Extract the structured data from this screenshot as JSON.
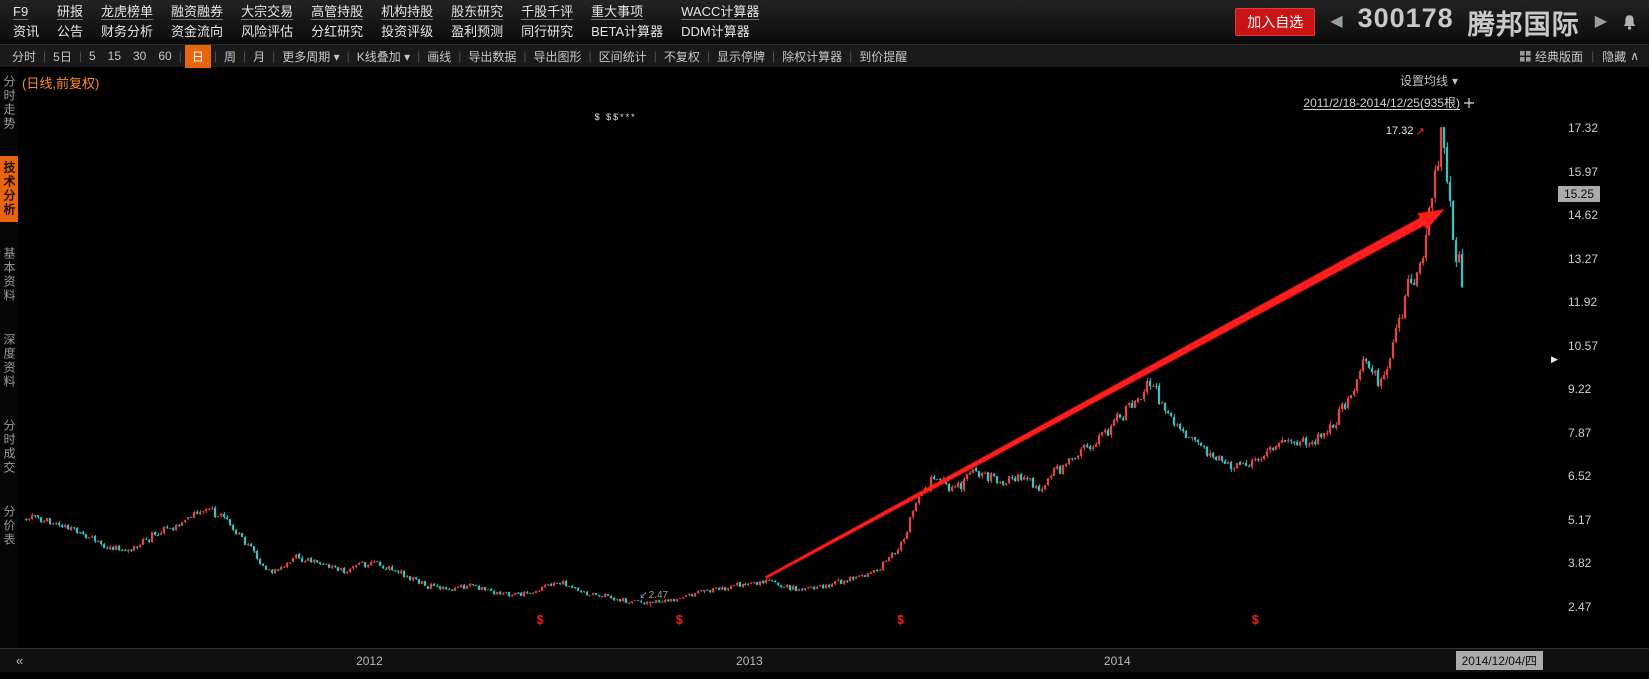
{
  "icons": {
    "caret_down": "▾",
    "chevron_up": "∧"
  },
  "header": {
    "menu_columns": [
      {
        "top": "F9",
        "top_name": "f9",
        "bottom": "资讯",
        "bottom_name": "news"
      },
      {
        "top": "研报",
        "top_name": "research-report",
        "bottom": "公告",
        "bottom_name": "announcement"
      },
      {
        "top": "龙虎榜单",
        "top_name": "dragon-tiger-list",
        "bottom": "财务分析",
        "bottom_name": "financial-analysis"
      },
      {
        "top": "融资融券",
        "top_name": "margin-trading",
        "bottom": "资金流向",
        "bottom_name": "capital-flow"
      },
      {
        "top": "大宗交易",
        "top_name": "block-trade",
        "bottom": "风险评估",
        "bottom_name": "risk-assessment"
      },
      {
        "top": "高管持股",
        "top_name": "executive-holding",
        "bottom": "分红研究",
        "bottom_name": "dividend-research"
      },
      {
        "top": "机构持股",
        "top_name": "institution-holding",
        "bottom": "投资评级",
        "bottom_name": "investment-rating"
      },
      {
        "top": "股东研究",
        "top_name": "shareholder-research",
        "bottom": "盈利预测",
        "bottom_name": "earnings-forecast"
      },
      {
        "top": "千股千评",
        "top_name": "stock-comments",
        "bottom": "同行研究",
        "bottom_name": "peer-research"
      },
      {
        "top": "重大事项",
        "top_name": "major-events",
        "bottom": "BETA计算器",
        "bottom_name": "beta-calculator"
      },
      {
        "top": "WACC计算器",
        "top_name": "wacc-calculator",
        "bottom": "DDM计算器",
        "bottom_name": "ddm-calculator"
      }
    ],
    "add_watchlist_label": "加入自选",
    "prev_icon": "◀",
    "next_icon": "▶",
    "stock_code": "300178",
    "stock_name": "腾邦国际"
  },
  "toolbar": {
    "items": [
      {
        "label": "分时",
        "name": "minute-chart",
        "sep": true
      },
      {
        "label": "5日",
        "name": "five-day",
        "sep": true
      },
      {
        "label": "5",
        "name": "period-5"
      },
      {
        "label": "15",
        "name": "period-15"
      },
      {
        "label": "30",
        "name": "period-30"
      },
      {
        "label": "60",
        "name": "period-60",
        "sep": true
      },
      {
        "label": "日",
        "name": "daily",
        "active": true,
        "sep": true
      },
      {
        "label": "周",
        "name": "weekly",
        "sep": true
      },
      {
        "label": "月",
        "name": "monthly",
        "sep": true
      },
      {
        "label": "更多周期",
        "name": "more-periods",
        "caret": true,
        "sep": true
      },
      {
        "label": "K线叠加",
        "name": "kline-overlay",
        "caret": true,
        "sep": true
      },
      {
        "label": "画线",
        "name": "draw-line",
        "sep": true
      },
      {
        "label": "导出数据",
        "name": "export-data",
        "sep": true
      },
      {
        "label": "导出图形",
        "name": "export-image",
        "sep": true
      },
      {
        "label": "区间统计",
        "name": "range-statistics",
        "sep": true
      },
      {
        "label": "不复权",
        "name": "no-adjust",
        "sep": true
      },
      {
        "label": "显示停牌",
        "name": "show-suspension",
        "sep": true
      },
      {
        "label": "除权计算器",
        "name": "exright-calculator",
        "sep": true
      },
      {
        "label": "到价提醒",
        "name": "price-alert"
      }
    ],
    "classic_label": "经典版面",
    "hide_label": "隐藏"
  },
  "sidebar": {
    "tabs": [
      {
        "label": "分时走势",
        "name": "minute-trend",
        "active": false
      },
      {
        "label": "技术分析",
        "name": "technical-analysis",
        "active": true
      },
      {
        "label": "基本资料",
        "name": "basic-info",
        "active": false
      },
      {
        "label": "深度资料",
        "name": "depth-info",
        "active": false
      },
      {
        "label": "分时成交",
        "name": "tick-trades",
        "active": false
      },
      {
        "label": "分价表",
        "name": "price-volume-table",
        "active": false
      }
    ]
  },
  "chart": {
    "corner_label": "(日线,前复权)",
    "ma_setting_label": "设置均线",
    "range_label": "2011/2/18-2014/12/25(935根)",
    "cursor_date": "2014/12/04/四",
    "scroll_left_icon": "«",
    "scroll_right_icon": "▶",
    "top_marks": "$ $$***",
    "high_arrow_icon": "↗",
    "low_arrow_icon": "↙"
  },
  "chart_data": {
    "type": "candlestick",
    "symbol": "300178",
    "name": "腾邦国际",
    "period": "日线",
    "adjust": "前复权",
    "date_range": [
      "2011/2/18",
      "2014/12/25"
    ],
    "bar_count": 935,
    "y_ticks": [
      17.32,
      15.97,
      14.62,
      13.27,
      11.92,
      10.57,
      9.22,
      7.87,
      6.52,
      5.17,
      3.82,
      2.47
    ],
    "ylim": [
      1.9,
      19.2
    ],
    "last_price": "15.25",
    "high_annotation": "17.32",
    "low_annotation": "2.47",
    "high_point": {
      "t": 0.986,
      "p": 17.32
    },
    "low_point": {
      "t": 0.434,
      "p": 2.47
    },
    "top_marks_t": 0.396,
    "x_ticks": [
      {
        "label": "2012",
        "t": 0.2396
      },
      {
        "label": "2013",
        "t": 0.5042
      },
      {
        "label": "2014",
        "t": 0.7604
      }
    ],
    "price_path": [
      {
        "t": 0,
        "p": 5.3
      },
      {
        "t": 0.024,
        "p": 5.1
      },
      {
        "t": 0.052,
        "p": 4.4
      },
      {
        "t": 0.072,
        "p": 4.2
      },
      {
        "t": 0.086,
        "p": 4.6
      },
      {
        "t": 0.104,
        "p": 4.95
      },
      {
        "t": 0.125,
        "p": 5.6
      },
      {
        "t": 0.142,
        "p": 5.05
      },
      {
        "t": 0.162,
        "p": 3.95
      },
      {
        "t": 0.17,
        "p": 3.5
      },
      {
        "t": 0.187,
        "p": 4.0
      },
      {
        "t": 0.205,
        "p": 3.8
      },
      {
        "t": 0.222,
        "p": 3.57
      },
      {
        "t": 0.24,
        "p": 3.88
      },
      {
        "t": 0.257,
        "p": 3.6
      },
      {
        "t": 0.274,
        "p": 3.22
      },
      {
        "t": 0.292,
        "p": 3.0
      },
      {
        "t": 0.309,
        "p": 3.16
      },
      {
        "t": 0.33,
        "p": 2.85
      },
      {
        "t": 0.351,
        "p": 2.94
      },
      {
        "t": 0.372,
        "p": 3.22
      },
      {
        "t": 0.393,
        "p": 2.85
      },
      {
        "t": 0.414,
        "p": 2.69
      },
      {
        "t": 0.434,
        "p": 2.58
      },
      {
        "t": 0.455,
        "p": 2.75
      },
      {
        "t": 0.476,
        "p": 3.0
      },
      {
        "t": 0.497,
        "p": 3.16
      },
      {
        "t": 0.518,
        "p": 3.25
      },
      {
        "t": 0.539,
        "p": 3.0
      },
      {
        "t": 0.56,
        "p": 3.16
      },
      {
        "t": 0.581,
        "p": 3.38
      },
      {
        "t": 0.598,
        "p": 3.79
      },
      {
        "t": 0.612,
        "p": 4.57
      },
      {
        "t": 0.623,
        "p": 6.08
      },
      {
        "t": 0.633,
        "p": 6.52
      },
      {
        "t": 0.647,
        "p": 6.08
      },
      {
        "t": 0.661,
        "p": 6.77
      },
      {
        "t": 0.678,
        "p": 6.2
      },
      {
        "t": 0.692,
        "p": 6.52
      },
      {
        "t": 0.706,
        "p": 6.14
      },
      {
        "t": 0.72,
        "p": 6.77
      },
      {
        "t": 0.734,
        "p": 7.24
      },
      {
        "t": 0.748,
        "p": 7.71
      },
      {
        "t": 0.762,
        "p": 8.34
      },
      {
        "t": 0.776,
        "p": 8.97
      },
      {
        "t": 0.783,
        "p": 9.44
      },
      {
        "t": 0.797,
        "p": 8.34
      },
      {
        "t": 0.811,
        "p": 7.56
      },
      {
        "t": 0.828,
        "p": 7.09
      },
      {
        "t": 0.845,
        "p": 6.77
      },
      {
        "t": 0.863,
        "p": 7.24
      },
      {
        "t": 0.88,
        "p": 7.71
      },
      {
        "t": 0.894,
        "p": 7.56
      },
      {
        "t": 0.908,
        "p": 8.03
      },
      {
        "t": 0.922,
        "p": 8.97
      },
      {
        "t": 0.932,
        "p": 10.2
      },
      {
        "t": 0.943,
        "p": 9.3
      },
      {
        "t": 0.953,
        "p": 10.85
      },
      {
        "t": 0.96,
        "p": 12.11
      },
      {
        "t": 0.967,
        "p": 12.74
      },
      {
        "t": 0.974,
        "p": 13.68
      },
      {
        "t": 0.981,
        "p": 15.56
      },
      {
        "t": 0.986,
        "p": 17.1
      },
      {
        "t": 0.991,
        "p": 14.94
      },
      {
        "t": 0.997,
        "p": 13.21
      },
      {
        "t": 1,
        "p": 12.58
      }
    ],
    "event_marks_t": [
      0.358,
      0.455,
      0.609,
      0.856
    ],
    "event_mark_glyph": "$",
    "trend_arrow": {
      "from_t": 0.515,
      "from_p": 3.38,
      "to_t": 0.988,
      "to_p": 14.8
    },
    "colors": {
      "up": "#ff5050",
      "down": "#49d8d8",
      "arrow": "#ff1e1e",
      "event_mark": "#ff2a2a"
    }
  }
}
